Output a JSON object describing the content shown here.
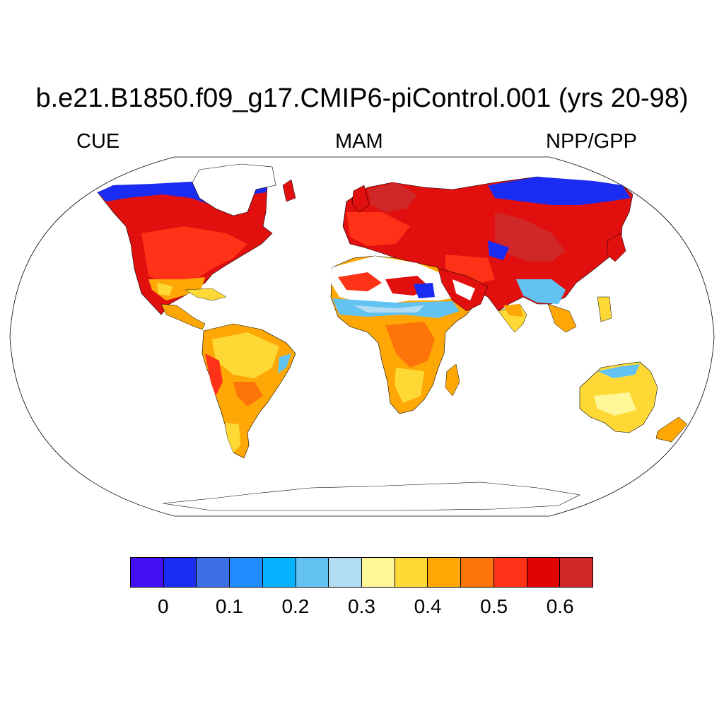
{
  "title": "b.e21.B1850.f09_g17.CMIP6-piControl.001 (yrs 20-98)",
  "subtitles": {
    "left": "CUE",
    "center": "MAM",
    "right": "NPP/GPP"
  },
  "map": {
    "projection": "Robinson",
    "variable": "CUE (NPP/GPP)",
    "season": "MAM",
    "land_colors": {
      "high_latitude_edges": "#1a2cf2",
      "boreal_temperate": "#e20f0f",
      "temperate_mid": "#fd3216",
      "tropics_mixed": "#fea705",
      "dryland": "#fed936",
      "semi_arid_fringe": "#62c3f3",
      "desert_bare": "#ffffff"
    }
  },
  "colorbar": {
    "colors": [
      "#4210f2",
      "#1a2cf2",
      "#3c6ee6",
      "#1f8cff",
      "#05b3ff",
      "#62c3f3",
      "#b1dcf1",
      "#fff798",
      "#fed936",
      "#fea705",
      "#fd740a",
      "#fd3216",
      "#e00302",
      "#d02828"
    ],
    "ticks": [
      "0",
      "0.1",
      "0.2",
      "0.3",
      "0.4",
      "0.5",
      "0.6"
    ],
    "tick_values": [
      0,
      0.1,
      0.2,
      0.3,
      0.4,
      0.5,
      0.6
    ],
    "min": -0.05,
    "max": 0.65
  }
}
